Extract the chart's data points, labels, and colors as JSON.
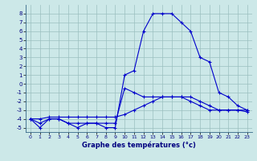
{
  "xlabel": "Graphe des températures (°c)",
  "bg_color": "#cce8e8",
  "grid_color": "#9bbfbf",
  "line_color": "#0000cc",
  "hours": [
    0,
    1,
    2,
    3,
    4,
    5,
    6,
    7,
    8,
    9,
    10,
    11,
    12,
    13,
    14,
    15,
    16,
    17,
    18,
    19,
    20,
    21,
    22,
    23
  ],
  "temp1": [
    -4,
    -5,
    -4,
    -4,
    -4.5,
    -5,
    -4.5,
    -4.5,
    -5,
    -5,
    1,
    1.5,
    6,
    8,
    8,
    8,
    7,
    6,
    3,
    2.5,
    -1,
    -1.5,
    -2.5,
    -3
  ],
  "temp2": [
    -4,
    -4.5,
    -4,
    -4,
    -4.5,
    -4.5,
    -4.5,
    -4.5,
    -4.5,
    -4.5,
    -0.5,
    -1,
    -1.5,
    -1.5,
    -1.5,
    -1.5,
    -1.5,
    -2,
    -2.5,
    -3,
    -3,
    -3,
    -3,
    -3
  ],
  "temp3": [
    -4,
    -4,
    -3.8,
    -3.8,
    -3.8,
    -3.8,
    -3.8,
    -3.8,
    -3.8,
    -3.8,
    -3.5,
    -3,
    -2.5,
    -2,
    -1.5,
    -1.5,
    -1.5,
    -1.5,
    -2,
    -2.5,
    -3,
    -3,
    -3,
    -3.2
  ],
  "ylim": [
    -5.5,
    9
  ],
  "xlim": [
    -0.5,
    23.5
  ],
  "yticks": [
    -5,
    -4,
    -3,
    -2,
    -1,
    0,
    1,
    2,
    3,
    4,
    5,
    6,
    7,
    8
  ],
  "xticks": [
    0,
    1,
    2,
    3,
    4,
    5,
    6,
    7,
    8,
    9,
    10,
    11,
    12,
    13,
    14,
    15,
    16,
    17,
    18,
    19,
    20,
    21,
    22,
    23
  ]
}
